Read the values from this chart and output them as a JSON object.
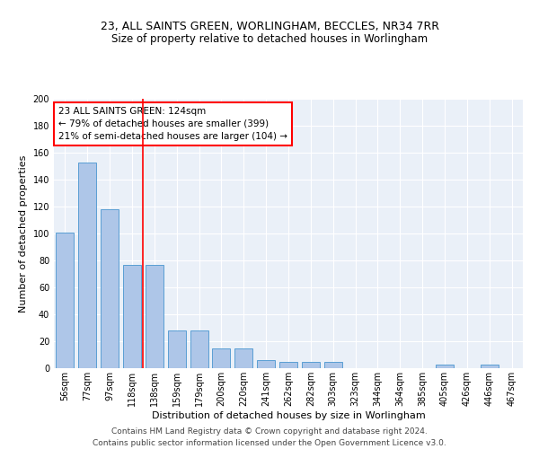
{
  "title": "23, ALL SAINTS GREEN, WORLINGHAM, BECCLES, NR34 7RR",
  "subtitle": "Size of property relative to detached houses in Worlingham",
  "xlabel": "Distribution of detached houses by size in Worlingham",
  "ylabel": "Number of detached properties",
  "categories": [
    "56sqm",
    "77sqm",
    "97sqm",
    "118sqm",
    "138sqm",
    "159sqm",
    "179sqm",
    "200sqm",
    "220sqm",
    "241sqm",
    "262sqm",
    "282sqm",
    "303sqm",
    "323sqm",
    "344sqm",
    "364sqm",
    "385sqm",
    "405sqm",
    "426sqm",
    "446sqm",
    "467sqm"
  ],
  "values": [
    101,
    153,
    118,
    77,
    77,
    28,
    28,
    15,
    15,
    6,
    5,
    5,
    5,
    0,
    0,
    0,
    0,
    3,
    0,
    3,
    0
  ],
  "bar_color": "#aec6e8",
  "bar_edge_color": "#5a9fd4",
  "vline_x_index": 3,
  "vline_color": "red",
  "annotation_line1": "23 ALL SAINTS GREEN: 124sqm",
  "annotation_line2": "← 79% of detached houses are smaller (399)",
  "annotation_line3": "21% of semi-detached houses are larger (104) →",
  "annotation_box_color": "white",
  "annotation_box_edge_color": "red",
  "ylim": [
    0,
    200
  ],
  "yticks": [
    0,
    20,
    40,
    60,
    80,
    100,
    120,
    140,
    160,
    180,
    200
  ],
  "bg_color": "#eaf0f8",
  "footer": "Contains HM Land Registry data © Crown copyright and database right 2024.\nContains public sector information licensed under the Open Government Licence v3.0.",
  "title_fontsize": 9,
  "subtitle_fontsize": 8.5,
  "ylabel_fontsize": 8,
  "xlabel_fontsize": 8,
  "tick_fontsize": 7,
  "annotation_fontsize": 7.5,
  "footer_fontsize": 6.5
}
